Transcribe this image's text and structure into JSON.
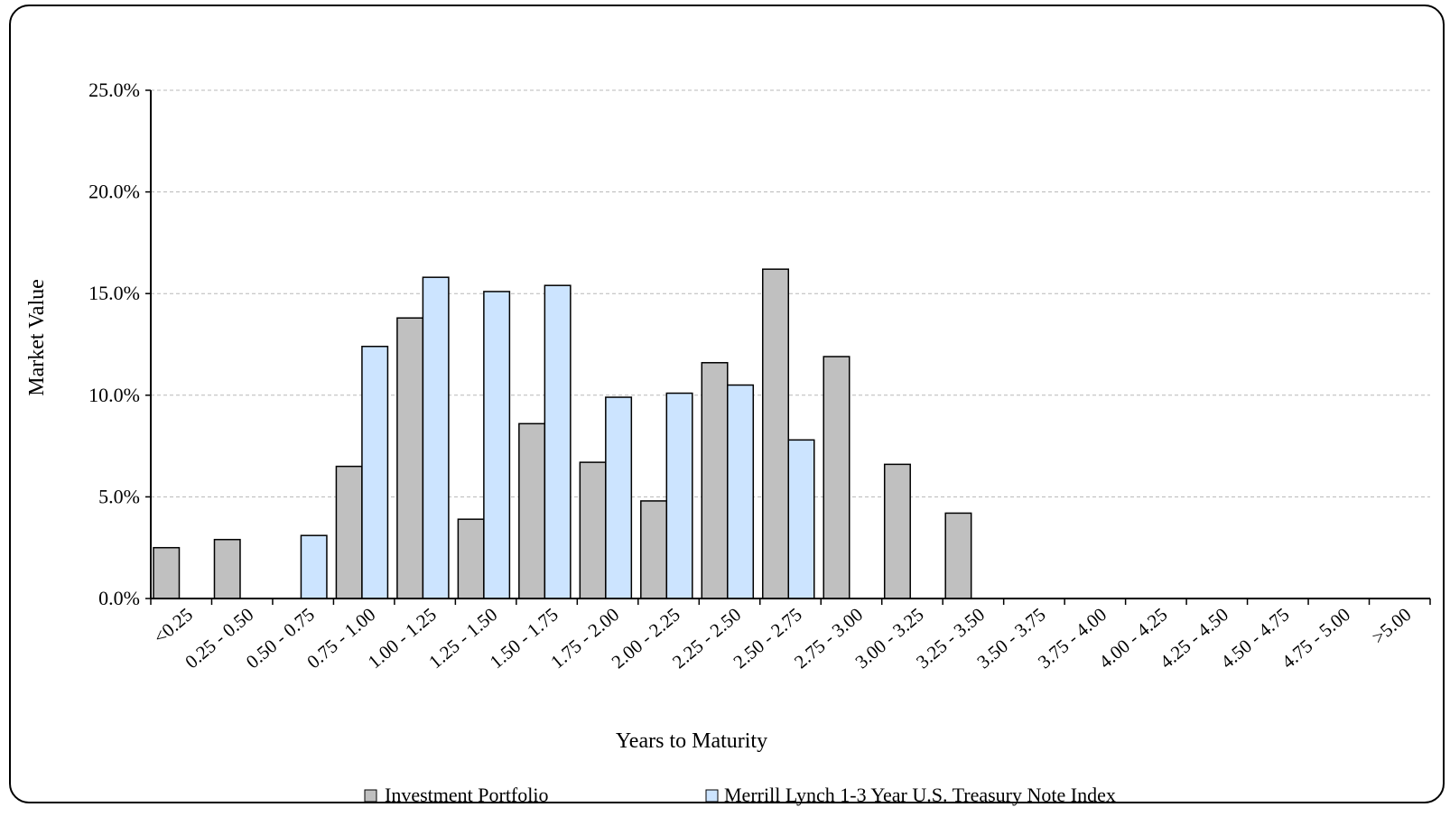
{
  "chart_data": {
    "type": "bar",
    "title": "",
    "xlabel": "Years to Maturity",
    "ylabel": "Market Value",
    "ylim": [
      0,
      25
    ],
    "yticks": [
      "0.0%",
      "5.0%",
      "10.0%",
      "15.0%",
      "20.0%",
      "25.0%"
    ],
    "grid": true,
    "legend_position": "bottom",
    "categories": [
      "<0.25",
      "0.25 - 0.50",
      "0.50 - 0.75",
      "0.75 - 1.00",
      "1.00 - 1.25",
      "1.25 - 1.50",
      "1.50 - 1.75",
      "1.75 - 2.00",
      "2.00 - 2.25",
      "2.25 - 2.50",
      "2.50 - 2.75",
      "2.75 - 3.00",
      "3.00 - 3.25",
      "3.25 - 3.50",
      "3.50 - 3.75",
      "3.75 - 4.00",
      "4.00 - 4.25",
      "4.25 - 4.50",
      "4.50 - 4.75",
      "4.75 - 5.00",
      ">5.00"
    ],
    "series": [
      {
        "name": "Investment Portfolio",
        "color": "#c0c0c0",
        "values": [
          2.5,
          2.9,
          0,
          6.5,
          13.8,
          3.9,
          8.6,
          6.7,
          4.8,
          11.6,
          16.2,
          11.9,
          6.6,
          4.2,
          0,
          0,
          0,
          0,
          0,
          0,
          0
        ]
      },
      {
        "name": "Merrill Lynch 1-3 Year U.S. Treasury Note Index",
        "color": "#cce4ff",
        "values": [
          0,
          0,
          3.1,
          12.4,
          15.8,
          15.1,
          15.4,
          9.9,
          10.1,
          10.5,
          7.8,
          0,
          0,
          0,
          0,
          0,
          0,
          0,
          0,
          0,
          0
        ]
      }
    ]
  }
}
